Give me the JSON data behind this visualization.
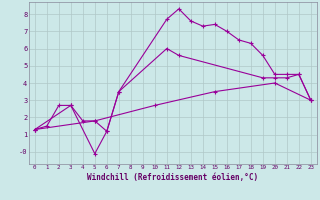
{
  "background_color": "#cce8e8",
  "grid_color": "#b0c8c8",
  "line_color": "#990099",
  "xlabel": "Windchill (Refroidissement éolien,°C)",
  "xlim": [
    -0.5,
    23.5
  ],
  "ylim": [
    -0.7,
    8.7
  ],
  "xticks": [
    0,
    1,
    2,
    3,
    4,
    5,
    6,
    7,
    8,
    9,
    10,
    11,
    12,
    13,
    14,
    15,
    16,
    17,
    18,
    19,
    20,
    21,
    22,
    23
  ],
  "yticks": [
    0,
    1,
    2,
    3,
    4,
    5,
    6,
    7,
    8
  ],
  "ytick_labels": [
    "-0",
    "1",
    "2",
    "3",
    "4",
    "5",
    "6",
    "7",
    "8"
  ],
  "line1_x": [
    0,
    1,
    2,
    3,
    4,
    5,
    6,
    7,
    11,
    12,
    13,
    14,
    15,
    16,
    17,
    18,
    19,
    20,
    21,
    22,
    23
  ],
  "line1_y": [
    1.3,
    1.5,
    2.7,
    2.7,
    1.8,
    1.8,
    1.2,
    3.5,
    7.7,
    8.3,
    7.6,
    7.3,
    7.4,
    7.0,
    6.5,
    6.3,
    5.6,
    4.5,
    4.5,
    4.5,
    3.0
  ],
  "line2_x": [
    0,
    3,
    5,
    6,
    7,
    11,
    12,
    19,
    20,
    21,
    22,
    23
  ],
  "line2_y": [
    1.3,
    2.7,
    -0.1,
    1.2,
    3.5,
    6.0,
    5.6,
    4.3,
    4.3,
    4.3,
    4.5,
    3.0
  ],
  "line3_x": [
    0,
    5,
    10,
    15,
    20,
    23
  ],
  "line3_y": [
    1.3,
    1.8,
    2.7,
    3.5,
    4.0,
    3.0
  ]
}
